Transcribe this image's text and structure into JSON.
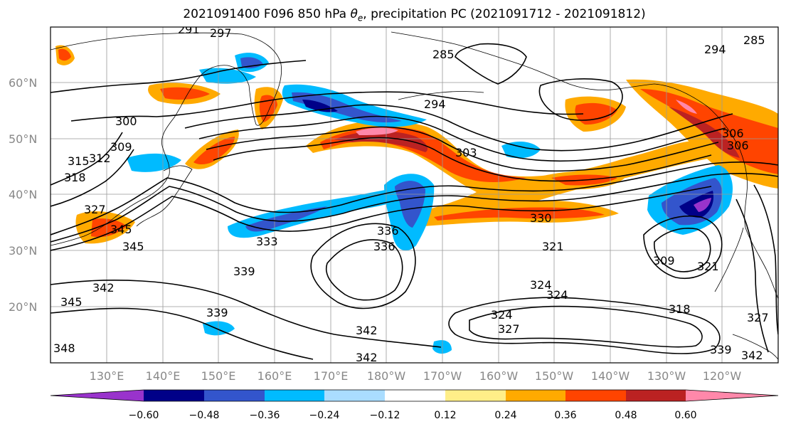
{
  "title": {
    "prefix": "2021091400 F096 850 hPa ",
    "symbol": "θ",
    "symbol_sub": "e",
    "suffix": ", precipitation PC (2021091712 - 2021091812)"
  },
  "map": {
    "lat_labels": [
      "60°N",
      "50°N",
      "40°N",
      "30°N",
      "20°N"
    ],
    "lon_labels": [
      "130°E",
      "140°E",
      "150°E",
      "160°E",
      "170°E",
      "180°W",
      "170°W",
      "160°W",
      "150°W",
      "140°W",
      "130°W",
      "120°W"
    ],
    "contour_labels": [
      "291",
      "297",
      "285",
      "294",
      "294",
      "285",
      "300",
      "309",
      "312",
      "315",
      "306",
      "303",
      "330",
      "336",
      "336",
      "333",
      "339",
      "345",
      "342",
      "342",
      "342",
      "339",
      "339",
      "342",
      "321",
      "324",
      "324",
      "327",
      "309",
      "318",
      "321",
      "327",
      "318",
      "345",
      "348",
      "324",
      "345",
      "306",
      "327"
    ]
  },
  "colorbar": {
    "colors": [
      "#9933cc",
      "#000088",
      "#3355cc",
      "#00bbff",
      "#aaddff",
      "#ffffff",
      "#ffee88",
      "#ffaa00",
      "#ff4400",
      "#bb2222",
      "#ff88aa"
    ],
    "tick_labels": [
      "−0.60",
      "−0.48",
      "−0.36",
      "−0.24",
      "−0.12",
      "0.12",
      "0.24",
      "0.36",
      "0.48",
      "0.60"
    ],
    "extend": "both"
  }
}
